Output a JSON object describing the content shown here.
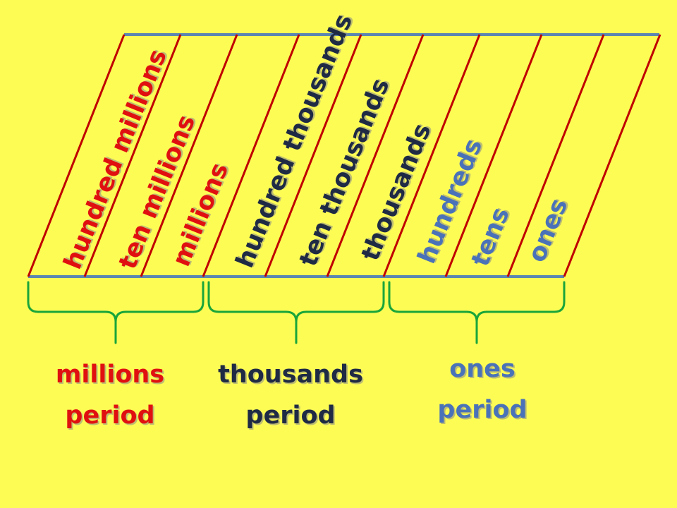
{
  "colors": {
    "background": "#fcfc55",
    "rule_line": "#5b86b0",
    "column_line": "#c00000",
    "bracket": "#1aa53a",
    "millions": "#e01010",
    "thousands": "#1f2a44",
    "ones": "#4a72b8"
  },
  "places": [
    {
      "label": "hundred millions",
      "group": "millions"
    },
    {
      "label": "ten millions",
      "group": "millions"
    },
    {
      "label": "millions",
      "group": "millions"
    },
    {
      "label": "hundred thousands",
      "group": "thousands"
    },
    {
      "label": "ten thousands",
      "group": "thousands"
    },
    {
      "label": "thousands",
      "group": "thousands"
    },
    {
      "label": "hundreds",
      "group": "ones"
    },
    {
      "label": "tens",
      "group": "ones"
    },
    {
      "label": "ones",
      "group": "ones"
    }
  ],
  "periods": [
    {
      "group": "millions",
      "line1": "millions",
      "line2": "period"
    },
    {
      "group": "thousands",
      "line1": "thousands",
      "line2": "period"
    },
    {
      "group": "ones",
      "line1": "ones",
      "line2": "period"
    }
  ]
}
